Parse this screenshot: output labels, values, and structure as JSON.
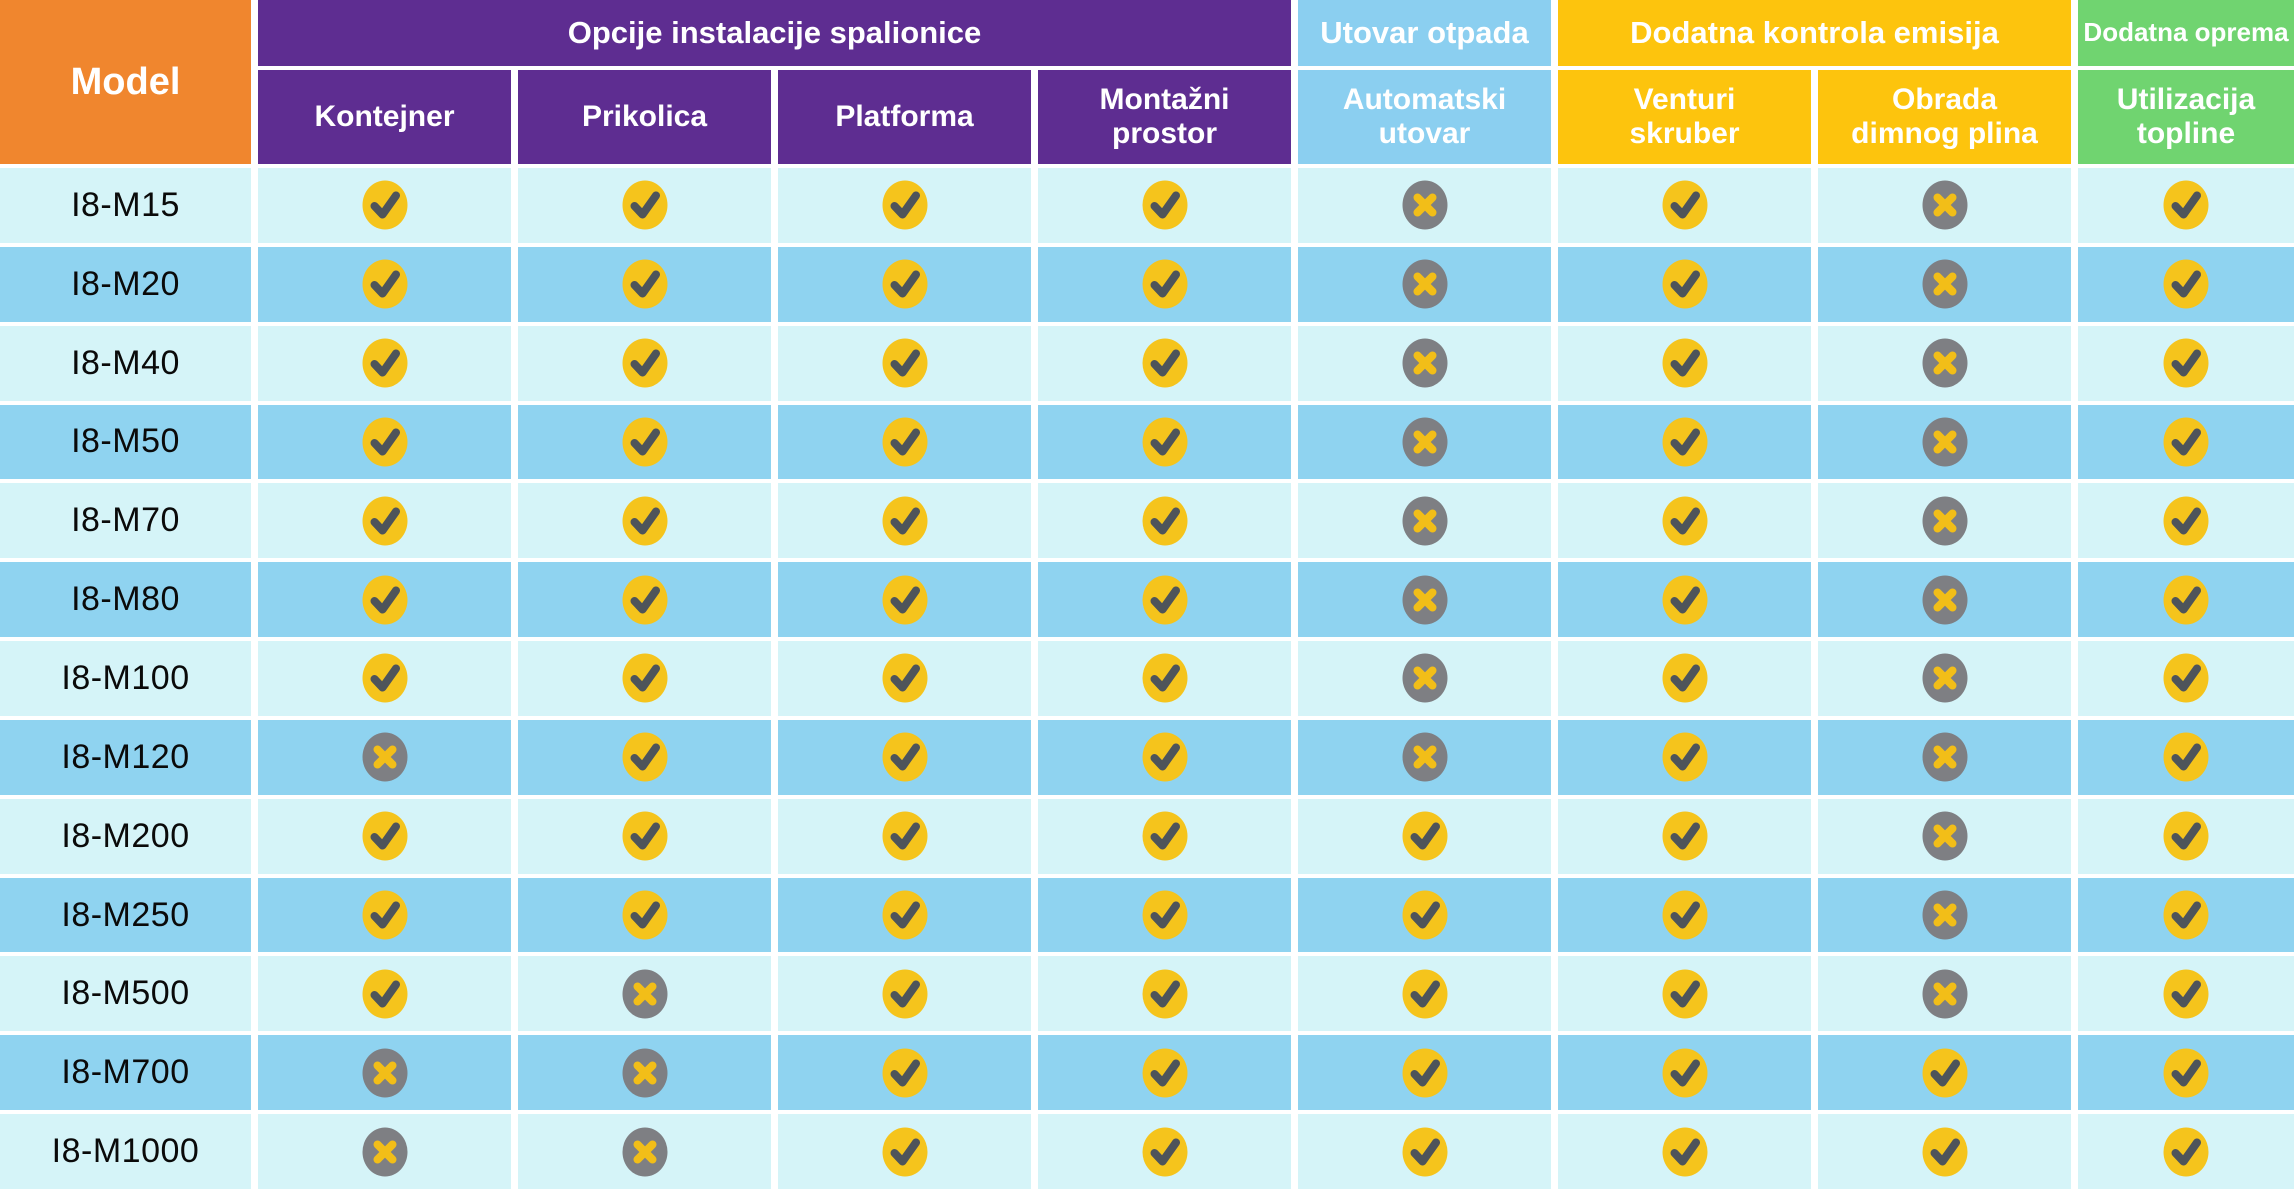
{
  "chart_data": {
    "type": "table",
    "corner_label": "Model",
    "column_groups": [
      {
        "id": "installation",
        "label": "Opcije instalacije spalionice",
        "span": 4,
        "color": "#5E2D91"
      },
      {
        "id": "waste-loading",
        "label": "Utovar otpada",
        "span": 1,
        "color": "#8BCFF0"
      },
      {
        "id": "emission-control",
        "label": "Dodatna kontrola emisija",
        "span": 2,
        "color": "#FDC40D"
      },
      {
        "id": "additional-equipment",
        "label": "Dodatna oprema",
        "span": 1,
        "color": "#70D470"
      }
    ],
    "columns": [
      {
        "label": "Kontejner",
        "group": "installation"
      },
      {
        "label": "Prikolica",
        "group": "installation"
      },
      {
        "label": "Platforma",
        "group": "installation"
      },
      {
        "label": "Montažni prostor",
        "group": "installation"
      },
      {
        "label": "Automatski utovar",
        "group": "waste-loading"
      },
      {
        "label": "Venturi skruber",
        "group": "emission-control"
      },
      {
        "label": "Obrada dimnog plina",
        "group": "emission-control"
      },
      {
        "label": "Utilizacija topline",
        "group": "additional-equipment"
      }
    ],
    "rows": [
      {
        "model": "I8-M15",
        "values": [
          true,
          true,
          true,
          true,
          false,
          true,
          false,
          true
        ]
      },
      {
        "model": "I8-M20",
        "values": [
          true,
          true,
          true,
          true,
          false,
          true,
          false,
          true
        ]
      },
      {
        "model": "I8-M40",
        "values": [
          true,
          true,
          true,
          true,
          false,
          true,
          false,
          true
        ]
      },
      {
        "model": "I8-M50",
        "values": [
          true,
          true,
          true,
          true,
          false,
          true,
          false,
          true
        ]
      },
      {
        "model": "I8-M70",
        "values": [
          true,
          true,
          true,
          true,
          false,
          true,
          false,
          true
        ]
      },
      {
        "model": "I8-M80",
        "values": [
          true,
          true,
          true,
          true,
          false,
          true,
          false,
          true
        ]
      },
      {
        "model": "I8-M100",
        "values": [
          true,
          true,
          true,
          true,
          false,
          true,
          false,
          true
        ]
      },
      {
        "model": "I8-M120",
        "values": [
          false,
          true,
          true,
          true,
          false,
          true,
          false,
          true
        ]
      },
      {
        "model": "I8-M200",
        "values": [
          true,
          true,
          true,
          true,
          true,
          true,
          false,
          true
        ]
      },
      {
        "model": "I8-M250",
        "values": [
          true,
          true,
          true,
          true,
          true,
          true,
          false,
          true
        ]
      },
      {
        "model": "I8-M500",
        "values": [
          true,
          false,
          true,
          true,
          true,
          true,
          false,
          true
        ]
      },
      {
        "model": "I8-M700",
        "values": [
          false,
          false,
          true,
          true,
          true,
          true,
          true,
          true
        ]
      },
      {
        "model": "I8-M1000",
        "values": [
          false,
          false,
          true,
          true,
          true,
          true,
          true,
          true
        ]
      }
    ]
  },
  "icons": {
    "available": {
      "name": "check-icon",
      "circle_color": "#F5C41C",
      "glyph_color": "#4E545A"
    },
    "not_available": {
      "name": "cross-icon",
      "circle_color": "#7E7F83",
      "glyph_color": "#F2BE18"
    }
  },
  "colors": {
    "corner_bg": "#F0862E",
    "installation_group": "#5E2D91",
    "waste_loading_group": "#8BCFF0",
    "emission_group": "#FDC40D",
    "equipment_group": "#70D470",
    "row_light": "#D5F4F8",
    "row_dark": "#8FD3F0",
    "separator": "#FFFFFF",
    "header_text": "#FFFFFF",
    "model_text": "#0A0A0A"
  }
}
